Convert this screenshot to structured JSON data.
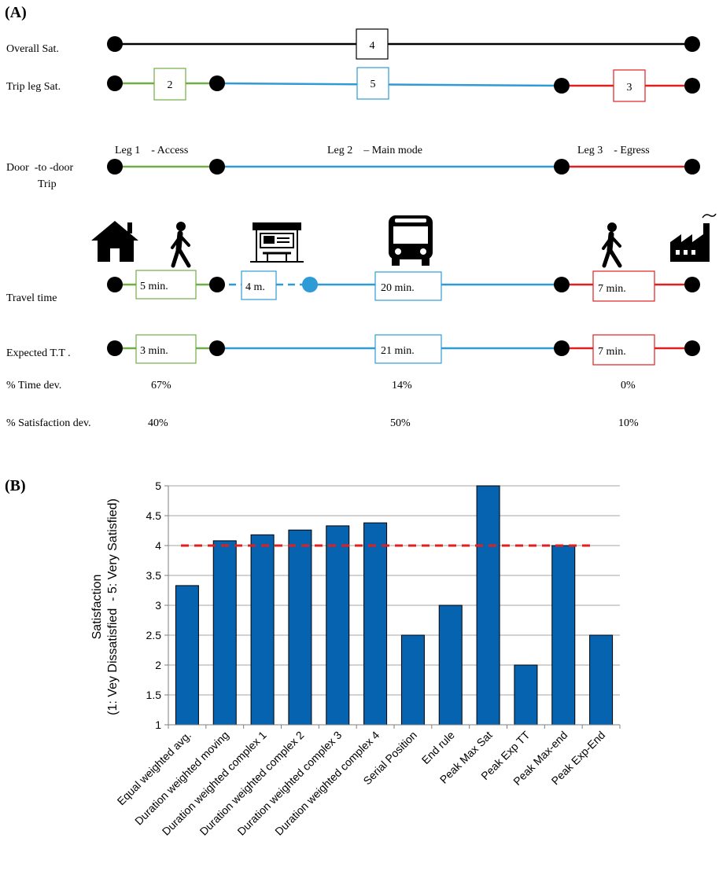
{
  "panel_a": {
    "label": "(A)",
    "row_labels": {
      "overall": "Overall Sat.",
      "trip_leg": "Trip leg Sat.",
      "door_line1": "Door  -to -door",
      "door_line2": "Trip",
      "travel_time": "Travel time",
      "expected": "Expected T.T .",
      "time_dev": "% Time dev.",
      "sat_dev": "% Satisfaction dev."
    },
    "overall_sat": "4",
    "leg_sat": [
      "2",
      "5",
      "3"
    ],
    "leg_titles": [
      "Leg 1    - Access",
      "Leg 2    – Main mode",
      "Leg 3    - Egress"
    ],
    "travel_times": [
      "5 min.",
      "4 m.",
      "20 min.",
      "7 min."
    ],
    "expected_times": [
      "3 min.",
      "21 min.",
      "7 min."
    ],
    "time_dev": [
      "67%",
      "14%",
      "0%"
    ],
    "sat_dev": [
      "40%",
      "50%",
      "10%"
    ],
    "icons": [
      "house-icon",
      "walking-person-icon",
      "bus-stop-icon",
      "bus-icon",
      "walking-person-icon",
      "factory-icon"
    ],
    "colors": {
      "access": "#70AD47",
      "main": "#2E9BD6",
      "egress": "#E02020",
      "black": "#000000"
    }
  },
  "panel_b": {
    "label": "(B)"
  },
  "chart_data": {
    "type": "bar",
    "categories": [
      "Equal weighted avg.",
      "Duration weighted moving",
      "Duration weighted complex 1",
      "Duration weighted complex 2",
      "Duration weighted complex 3",
      "Duration weighted complex 4",
      "Serial Position",
      "End rule",
      "Peak Max Sat",
      "Peak Exp TT",
      "Peak Max-end",
      "Peak Exp-End"
    ],
    "values": [
      3.33,
      4.08,
      4.18,
      4.26,
      4.33,
      4.38,
      2.5,
      3.0,
      5.0,
      2.0,
      4.0,
      2.5
    ],
    "reference_line": 4,
    "ylabel_line1": "Satisfaction",
    "ylabel_line2": "(1: Vey Dissatisfied  - 5: Very Satisfied)",
    "ylim": [
      1,
      5
    ],
    "yticks": [
      "1",
      "1.5",
      "2",
      "2.5",
      "3",
      "3.5",
      "4",
      "4.5",
      "5"
    ],
    "grid": true,
    "bar_color": "#0563B0",
    "reference_color": "#E02020"
  }
}
